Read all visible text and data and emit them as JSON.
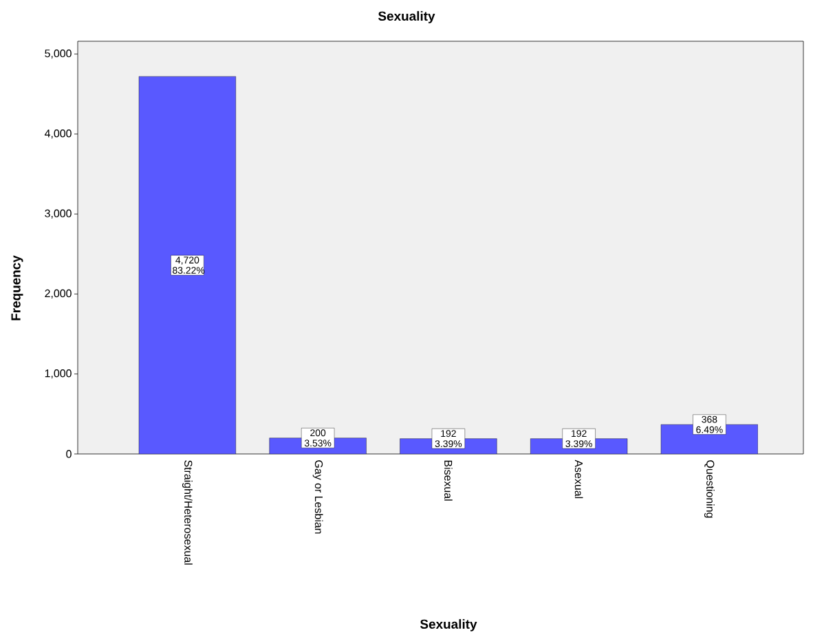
{
  "chart_data": {
    "type": "bar",
    "title": "Sexuality",
    "xlabel": "Sexuality",
    "ylabel": "Frequency",
    "categories": [
      "Straight/Heterosexual",
      "Gay or Lesbian",
      "Bisexual",
      "Asexual",
      "Questioning"
    ],
    "values": [
      4720,
      200,
      192,
      192,
      368
    ],
    "value_labels": [
      "4,720 83.22%",
      "200 3.53%",
      "192 3.39%",
      "192 3.39%",
      "368 6.49%"
    ],
    "color": "#5959ff",
    "ylim": [
      0,
      5160
    ],
    "yticks": [
      0,
      {
        "value": 1000,
        "label": "1,000"
      },
      {
        "value": 2000,
        "label": "2,000"
      },
      {
        "value": 3000,
        "label": "3,000"
      },
      {
        "value": 4000,
        "label": "4,000"
      },
      {
        "value": 5000,
        "label": "5,000"
      }
    ],
    "grid": false
  }
}
